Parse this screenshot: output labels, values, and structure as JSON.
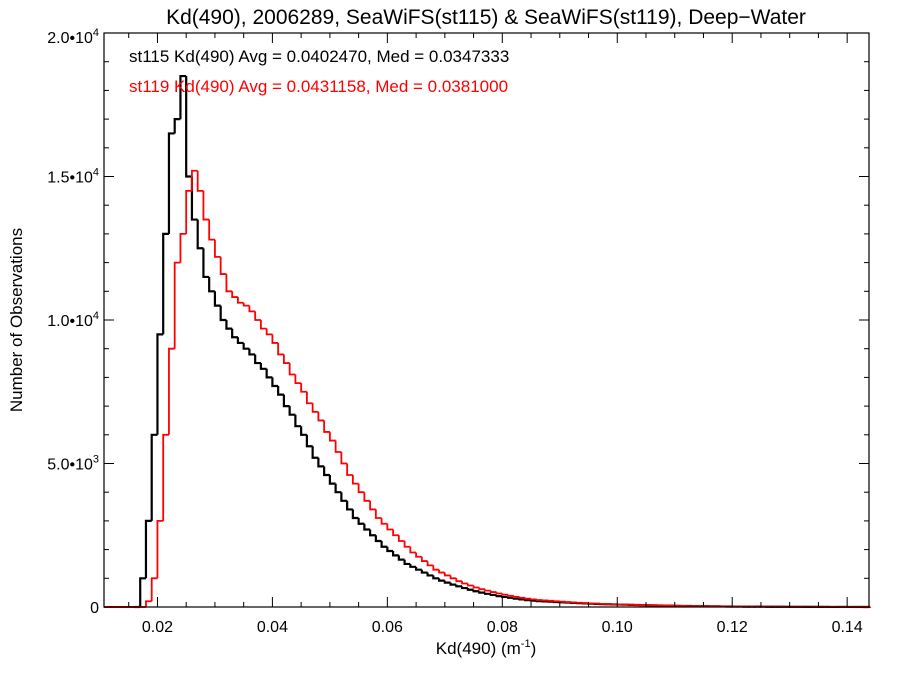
{
  "chart_data": {
    "type": "histogram",
    "title": "Kd(490), 2006289, SeaWiFS(st115) & SeaWiFS(st119), Deep−Water",
    "xlabel": "Kd(490) (m",
    "xlabel_sup": "-1",
    "xlabel_close": ")",
    "ylabel": "Number of Observations",
    "xlim": [
      0.0107,
      0.1438
    ],
    "ylim": [
      0,
      20000
    ],
    "x_ticks": [
      0.02,
      0.04,
      0.06,
      0.08,
      0.1,
      0.12,
      0.14
    ],
    "x_tick_labels": [
      "0.02",
      "0.04",
      "0.06",
      "0.08",
      "0.10",
      "0.12",
      "0.14"
    ],
    "y_ticks": [
      0,
      5000,
      10000,
      15000,
      20000
    ],
    "y_tick_labels": [
      {
        "mant": "0",
        "exp": ""
      },
      {
        "mant": "5.0•10",
        "exp": "3"
      },
      {
        "mant": "1.0•10",
        "exp": "4"
      },
      {
        "mant": "1.5•10",
        "exp": "4"
      },
      {
        "mant": "2.0•10",
        "exp": "4"
      }
    ],
    "bin_start": 0.016,
    "bin_width": 0.001,
    "series": [
      {
        "name": "st115",
        "color": "#000000",
        "legend": "st115 Kd(490) Avg = 0.0402470, Med = 0.0347333",
        "values": [
          0,
          1000,
          3000,
          6000,
          9500,
          13000,
          16500,
          17000,
          18500,
          15000,
          13500,
          12500,
          11500,
          11000,
          10500,
          10000,
          9700,
          9400,
          9200,
          9000,
          8800,
          8500,
          8300,
          8000,
          7700,
          7400,
          7000,
          6700,
          6300,
          6000,
          5600,
          5200,
          4900,
          4600,
          4300,
          4000,
          3700,
          3400,
          3100,
          2900,
          2700,
          2500,
          2300,
          2100,
          1950,
          1800,
          1650,
          1500,
          1400,
          1300,
          1200,
          1100,
          1000,
          920,
          850,
          780,
          720,
          660,
          600,
          550,
          500,
          460,
          420,
          380,
          350,
          320,
          290,
          265,
          240,
          220,
          205,
          195,
          185,
          175,
          165,
          155,
          145,
          135,
          125,
          115,
          108,
          100,
          95,
          90,
          85,
          80,
          75,
          70,
          65,
          60,
          56,
          52,
          48,
          44,
          40,
          37,
          34,
          31,
          28,
          26,
          24,
          22,
          20,
          18,
          16,
          15,
          14,
          13,
          12,
          11,
          10,
          9,
          8,
          8,
          7,
          6,
          6,
          5,
          5,
          4,
          4,
          3,
          3,
          3,
          2,
          2,
          2,
          1,
          1
        ]
      },
      {
        "name": "st119",
        "color": "#ff0000",
        "legend": "st119 Kd(490) Avg = 0.0431158, Med = 0.0381000",
        "values": [
          0,
          0,
          200,
          1000,
          3000,
          6000,
          9000,
          12000,
          13000,
          14500,
          15200,
          14500,
          13500,
          12800,
          12200,
          11600,
          11000,
          10800,
          10600,
          10500,
          10300,
          10000,
          9700,
          9500,
          9200,
          8800,
          8500,
          8100,
          7800,
          7500,
          7100,
          6800,
          6500,
          6100,
          5800,
          5400,
          5000,
          4600,
          4300,
          4000,
          3700,
          3400,
          3100,
          2900,
          2700,
          2500,
          2300,
          2100,
          1900,
          1750,
          1600,
          1450,
          1300,
          1200,
          1100,
          1000,
          900,
          820,
          750,
          680,
          620,
          570,
          520,
          470,
          430,
          390,
          350,
          320,
          290,
          265,
          245,
          230,
          215,
          200,
          185,
          172,
          160,
          148,
          137,
          127,
          118,
          110,
          103,
          96,
          90,
          84,
          78,
          72,
          67,
          62,
          58,
          54,
          50,
          46,
          42,
          39,
          36,
          33,
          30,
          28,
          26,
          24,
          22,
          20,
          18,
          17,
          16,
          15,
          14,
          13,
          12,
          11,
          10,
          9,
          8,
          7,
          7,
          6,
          6,
          5,
          5,
          4,
          4,
          3,
          3,
          2,
          2,
          2,
          1
        ]
      }
    ]
  }
}
